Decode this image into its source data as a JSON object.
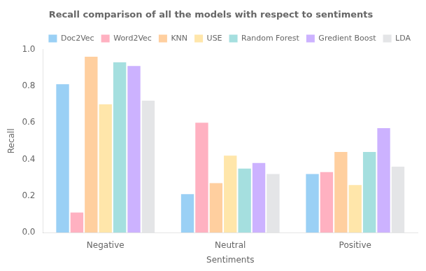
{
  "chart_data": {
    "type": "bar",
    "title": "Recall comparison of all the models with respect to sentiments",
    "xlabel": "Sentiments",
    "ylabel": "Recall",
    "categories": [
      "Negative",
      "Neutral",
      "Positive"
    ],
    "series": [
      {
        "name": "Doc2Vec",
        "values": [
          0.81,
          0.21,
          0.32
        ]
      },
      {
        "name": "Word2Vec",
        "values": [
          0.11,
          0.6,
          0.33
        ]
      },
      {
        "name": "KNN",
        "values": [
          0.96,
          0.27,
          0.44
        ]
      },
      {
        "name": "USE",
        "values": [
          0.7,
          0.42,
          0.26
        ]
      },
      {
        "name": "Random Forest",
        "values": [
          0.93,
          0.35,
          0.44
        ]
      },
      {
        "name": "Gredient Boost",
        "values": [
          0.91,
          0.38,
          0.57
        ]
      },
      {
        "name": "LDA",
        "values": [
          0.72,
          0.32,
          0.36
        ]
      }
    ],
    "ylim": [
      0.0,
      1.0
    ],
    "yticks": [
      {
        "value": 0.0,
        "label": "0.0"
      },
      {
        "value": 0.2,
        "label": "0.2"
      },
      {
        "value": 0.4,
        "label": "0.4"
      },
      {
        "value": 0.6,
        "label": "0.6"
      },
      {
        "value": 0.8,
        "label": "0.8"
      },
      {
        "value": 1.0,
        "label": "1.0"
      }
    ],
    "grid": false,
    "legend": "upper right"
  }
}
